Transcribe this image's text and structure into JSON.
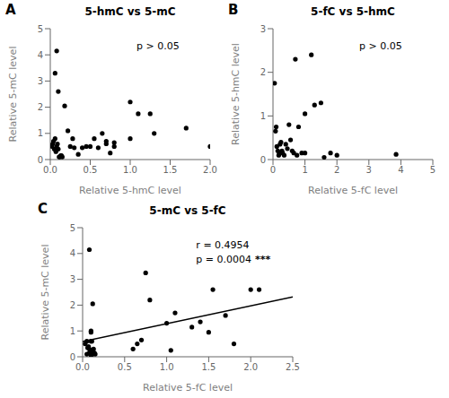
{
  "chart_data": [
    {
      "type": "scatter",
      "panel_label": "A",
      "title": "5-hmC vs 5-mC",
      "x_label": "Relative 5-hmC level",
      "y_label": "Relative 5-mC level",
      "annotations": [
        [
          "p > 0.05"
        ]
      ],
      "grid": false,
      "xlim": [
        0,
        2
      ],
      "ylim": [
        0,
        5
      ],
      "xticks": [
        {
          "value": 0,
          "label": "0.0"
        },
        {
          "value": 0.5,
          "label": "0.5"
        },
        {
          "value": 1.0,
          "label": "1.0"
        },
        {
          "value": 1.5,
          "label": "1.5"
        },
        {
          "value": 2.0,
          "label": "2.0"
        }
      ],
      "yticks": [
        0,
        1,
        2,
        3,
        4,
        5
      ],
      "series": [
        {
          "type": "scatter",
          "color": "#000000",
          "x": [
            0.02,
            0.03,
            0.04,
            0.05,
            0.06,
            0.07,
            0.08,
            0.09,
            0.1,
            0.11,
            0.12,
            0.13,
            0.14,
            0.15,
            0.06,
            0.08,
            0.1,
            0.18,
            0.22,
            0.25,
            0.28,
            0.3,
            0.35,
            0.4,
            0.45,
            0.5,
            0.55,
            0.6,
            0.65,
            0.7,
            0.75,
            0.8,
            0.7,
            0.8,
            1.0,
            1.0,
            1.1,
            1.25,
            1.3,
            1.7,
            2.0
          ],
          "values": [
            0.5,
            0.6,
            0.7,
            0.4,
            0.8,
            0.3,
            0.5,
            0.6,
            0.4,
            0.1,
            0.1,
            0.15,
            0.15,
            0.1,
            3.3,
            4.15,
            2.6,
            2.05,
            1.1,
            0.5,
            0.8,
            0.45,
            0.2,
            0.45,
            0.5,
            0.5,
            0.8,
            0.45,
            1.0,
            0.7,
            0.25,
            0.65,
            0.6,
            0.5,
            2.2,
            0.8,
            1.75,
            1.75,
            1.0,
            1.2,
            0.5
          ]
        }
      ]
    },
    {
      "type": "scatter",
      "panel_label": "B",
      "title": "5-fC vs 5-hmC",
      "x_label": "Relative 5-fC level",
      "y_label": "Relative 5-hmC level",
      "annotations": [
        [
          "p > 0.05"
        ]
      ],
      "grid": false,
      "xlim": [
        0,
        5
      ],
      "ylim": [
        0,
        3
      ],
      "xticks": [
        0,
        1,
        2,
        3,
        4,
        5
      ],
      "yticks": [
        0,
        1,
        2,
        3
      ],
      "series": [
        {
          "type": "scatter",
          "color": "#000000",
          "x": [
            0.05,
            0.08,
            0.1,
            0.12,
            0.15,
            0.18,
            0.2,
            0.22,
            0.25,
            0.28,
            0.3,
            0.35,
            0.4,
            0.45,
            0.5,
            0.55,
            0.6,
            0.65,
            0.7,
            0.75,
            0.8,
            0.9,
            1.0,
            1.0,
            1.2,
            1.3,
            1.5,
            1.6,
            1.8,
            2.0,
            3.85
          ],
          "values": [
            1.75,
            0.65,
            0.75,
            0.3,
            0.2,
            0.1,
            0.15,
            0.35,
            0.4,
            0.2,
            0.15,
            0.1,
            0.35,
            0.25,
            0.8,
            0.45,
            0.2,
            0.15,
            2.3,
            0.1,
            0.75,
            0.15,
            1.05,
            0.15,
            2.4,
            1.25,
            1.3,
            0.05,
            0.15,
            0.1,
            0.12
          ]
        }
      ]
    },
    {
      "type": "scatter",
      "panel_label": "C",
      "title": "5-mC vs 5-fC",
      "x_label": "Relative 5-fC level",
      "y_label": "Relative 5-mC level",
      "annotations": [
        [
          "r = 0.4954"
        ],
        [
          "p = 0.0004",
          "***"
        ]
      ],
      "grid": false,
      "xlim": [
        0,
        2.5
      ],
      "ylim": [
        0,
        5
      ],
      "xticks": [
        {
          "value": 0,
          "label": "0.0"
        },
        {
          "value": 0.5,
          "label": "0.5"
        },
        {
          "value": 1.0,
          "label": "1.0"
        },
        {
          "value": 1.5,
          "label": "1.5"
        },
        {
          "value": 2.0,
          "label": "2.0"
        },
        {
          "value": 2.5,
          "label": "2.5"
        }
      ],
      "yticks": [
        0,
        1,
        2,
        3,
        4,
        5
      ],
      "series": [
        {
          "type": "scatter",
          "color": "#000000",
          "x": [
            0.03,
            0.05,
            0.06,
            0.07,
            0.08,
            0.09,
            0.1,
            0.1,
            0.11,
            0.12,
            0.13,
            0.14,
            0.08,
            0.1,
            0.12,
            0.05,
            0.08,
            0.1,
            0.12,
            0.15,
            0.6,
            0.65,
            0.7,
            0.75,
            0.8,
            1.0,
            1.05,
            1.1,
            1.3,
            1.4,
            1.5,
            1.55,
            1.7,
            1.8,
            2.0,
            2.1
          ],
          "values": [
            0.5,
            0.6,
            0.35,
            0.4,
            0.3,
            0.25,
            0.95,
            1.0,
            0.6,
            0.25,
            0.3,
            0.15,
            4.15,
            0.6,
            2.05,
            0.1,
            0.15,
            0.05,
            0.1,
            0.1,
            0.3,
            0.5,
            0.65,
            3.25,
            2.2,
            1.3,
            0.25,
            1.7,
            1.15,
            1.35,
            0.95,
            2.6,
            1.6,
            0.5,
            2.6,
            2.6
          ]
        },
        {
          "type": "line",
          "color": "#000000",
          "x": [
            0,
            2.5
          ],
          "values": [
            0.59259,
            2.31983
          ]
        }
      ]
    }
  ]
}
